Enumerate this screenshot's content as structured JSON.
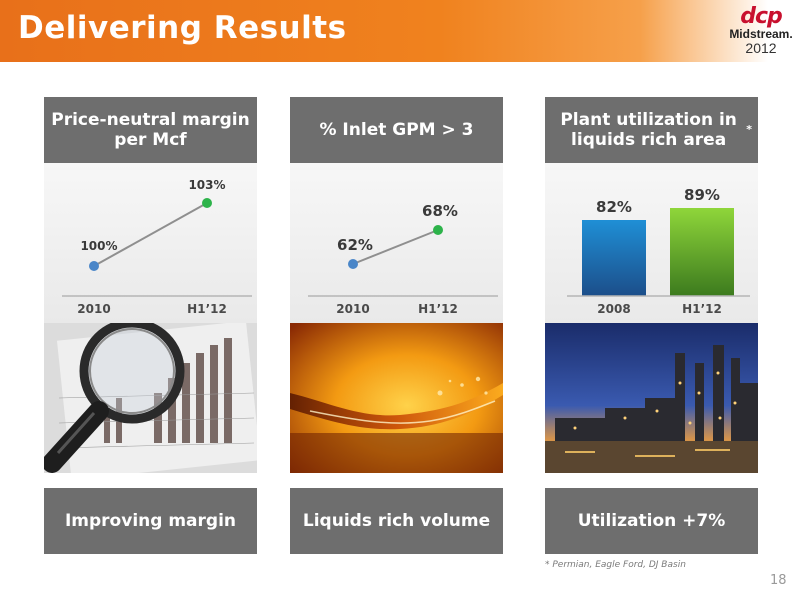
{
  "slide": {
    "title": "Delivering Results",
    "page_number": "18",
    "footnote": "* Permian, Eagle Ford, DJ Basin"
  },
  "logo": {
    "mark": "dcp",
    "name": "Midstream.",
    "year": "2012"
  },
  "panels": [
    {
      "header": "Price-neutral  margin per Mcf",
      "footer": "Improving margin",
      "photo": "magnifying-glass-over-bar-chart"
    },
    {
      "header": "% Inlet GPM > 3",
      "footer": "Liquids rich volume",
      "photo": "liquid-splash"
    },
    {
      "header": "Plant utilization in liquids rich area",
      "header_mark": "*",
      "footer": "Utilization +7%",
      "photo": "processing-plant-at-dusk"
    }
  ],
  "colors": {
    "banner": "#f0821e",
    "panel_gray": "#6e6e6e",
    "point_blue": "#4a86c8",
    "point_green": "#2db34a"
  },
  "chart_data": [
    {
      "type": "line",
      "categories": [
        "2010",
        "H1’12"
      ],
      "values": [
        100,
        103
      ],
      "data_labels": [
        "100%",
        "103%"
      ],
      "title": "Price-neutral  margin per Mcf"
    },
    {
      "type": "line",
      "categories": [
        "2010",
        "H1’12"
      ],
      "values": [
        62,
        68
      ],
      "data_labels": [
        "62%",
        "68%"
      ],
      "title": "% Inlet GPM > 3"
    },
    {
      "type": "bar",
      "categories": [
        "2008",
        "H1’12"
      ],
      "values": [
        82,
        89
      ],
      "data_labels": [
        "82%",
        "89%"
      ],
      "title": "Plant utilization in liquids rich area*"
    }
  ]
}
